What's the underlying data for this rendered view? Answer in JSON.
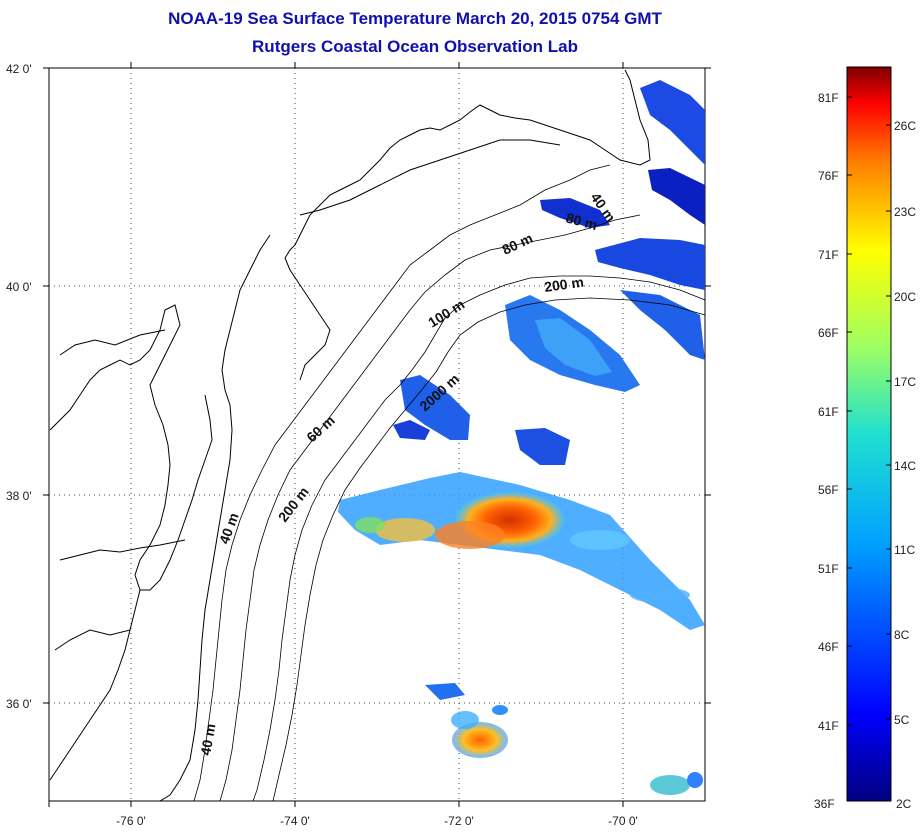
{
  "title": {
    "line1": "NOAA-19 Sea Surface Temperature March 20, 2015 0754 GMT",
    "line2": "Rutgers Coastal Ocean Observation Lab"
  },
  "axes": {
    "lat_ticks": [
      "42 0'",
      "40 0'",
      "38 0'",
      "36 0'"
    ],
    "lon_ticks": [
      "-76 0'",
      "-74 0'",
      "-72 0'",
      "-70 0'"
    ]
  },
  "contour_labels": [
    "40 m",
    "80 m",
    "80 m",
    "200 m",
    "100 m",
    "2000 m",
    "60 m",
    "200 m",
    "40 m",
    "40 m"
  ],
  "colorbar": {
    "fahrenheit": [
      "81F",
      "76F",
      "71F",
      "66F",
      "61F",
      "56F",
      "51F",
      "46F",
      "41F",
      "36F"
    ],
    "celsius": [
      "26C",
      "23C",
      "20C",
      "17C",
      "14C",
      "11C",
      "8C",
      "5C",
      "2C"
    ],
    "colors": [
      "#7f0000",
      "#ff0000",
      "#ff7f00",
      "#ffff00",
      "#7fff7f",
      "#00ffff",
      "#007fff",
      "#0000ff",
      "#00007f"
    ]
  }
}
